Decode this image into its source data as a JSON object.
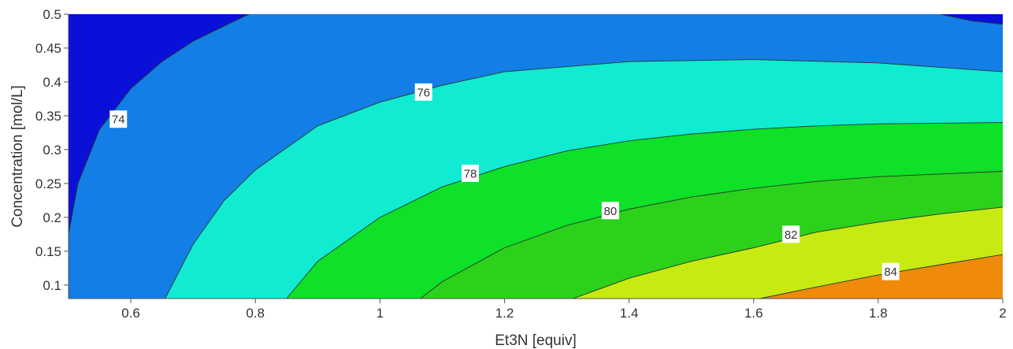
{
  "chart_data": {
    "type": "contour",
    "title": "",
    "xlabel": "Et3N [equiv]",
    "ylabel": "Concentration [mol/L]",
    "xlim": [
      0.5,
      2.0
    ],
    "ylim": [
      0.08,
      0.5
    ],
    "x_ticks": [
      "0.6",
      "0.8",
      "1",
      "1.2",
      "1.4",
      "1.6",
      "1.8",
      "2"
    ],
    "y_ticks": [
      "0.1",
      "0.15",
      "0.2",
      "0.25",
      "0.3",
      "0.35",
      "0.4",
      "0.45",
      "0.5"
    ],
    "grid": false,
    "colors": {
      "below_74": "#0a10d8",
      "74_to_76": "#137ee6",
      "76_to_78": "#10ebd2",
      "78_to_80": "#0fe028",
      "80_to_82": "#2cd11c",
      "82_to_84": "#c7ea12",
      "above_84": "#ef8a0a",
      "contour_line": "#1f3a2a"
    },
    "contours": [
      {
        "level": 74,
        "label": "74",
        "label_at": [
          0.58,
          0.345
        ],
        "points": [
          [
            0.5,
            0.175
          ],
          [
            0.515,
            0.25
          ],
          [
            0.55,
            0.33
          ],
          [
            0.6,
            0.39
          ],
          [
            0.65,
            0.43
          ],
          [
            0.7,
            0.46
          ],
          [
            0.76,
            0.487
          ],
          [
            0.79,
            0.5
          ]
        ]
      },
      {
        "level": 74,
        "label": "",
        "label_at": null,
        "points": [
          [
            1.9,
            0.5
          ],
          [
            1.95,
            0.49
          ],
          [
            2.0,
            0.485
          ]
        ]
      },
      {
        "level": 76,
        "label": "76",
        "label_at": [
          1.07,
          0.385
        ],
        "points": [
          [
            0.655,
            0.08
          ],
          [
            0.7,
            0.16
          ],
          [
            0.75,
            0.225
          ],
          [
            0.8,
            0.27
          ],
          [
            0.9,
            0.335
          ],
          [
            1.0,
            0.37
          ],
          [
            1.1,
            0.395
          ],
          [
            1.2,
            0.415
          ],
          [
            1.4,
            0.43
          ],
          [
            1.6,
            0.433
          ],
          [
            1.8,
            0.428
          ],
          [
            2.0,
            0.415
          ]
        ]
      },
      {
        "level": 78,
        "label": "78",
        "label_at": [
          1.145,
          0.265
        ],
        "points": [
          [
            0.85,
            0.08
          ],
          [
            0.9,
            0.135
          ],
          [
            1.0,
            0.2
          ],
          [
            1.1,
            0.245
          ],
          [
            1.2,
            0.275
          ],
          [
            1.3,
            0.298
          ],
          [
            1.4,
            0.313
          ],
          [
            1.5,
            0.323
          ],
          [
            1.6,
            0.33
          ],
          [
            1.7,
            0.335
          ],
          [
            1.8,
            0.338
          ],
          [
            2.0,
            0.34
          ]
        ]
      },
      {
        "level": 80,
        "label": "80",
        "label_at": [
          1.37,
          0.21
        ],
        "points": [
          [
            1.065,
            0.08
          ],
          [
            1.1,
            0.105
          ],
          [
            1.2,
            0.155
          ],
          [
            1.3,
            0.188
          ],
          [
            1.4,
            0.212
          ],
          [
            1.5,
            0.23
          ],
          [
            1.6,
            0.243
          ],
          [
            1.7,
            0.253
          ],
          [
            1.8,
            0.26
          ],
          [
            2.0,
            0.268
          ]
        ]
      },
      {
        "level": 82,
        "label": "82",
        "label_at": [
          1.66,
          0.175
        ],
        "points": [
          [
            1.31,
            0.08
          ],
          [
            1.4,
            0.11
          ],
          [
            1.5,
            0.135
          ],
          [
            1.6,
            0.155
          ],
          [
            1.7,
            0.178
          ],
          [
            1.8,
            0.193
          ],
          [
            1.9,
            0.205
          ],
          [
            2.0,
            0.215
          ]
        ]
      },
      {
        "level": 84,
        "label": "84",
        "label_at": [
          1.82,
          0.12
        ],
        "points": [
          [
            1.61,
            0.08
          ],
          [
            1.7,
            0.097
          ],
          [
            1.8,
            0.115
          ],
          [
            1.9,
            0.13
          ],
          [
            2.0,
            0.145
          ]
        ]
      }
    ]
  }
}
